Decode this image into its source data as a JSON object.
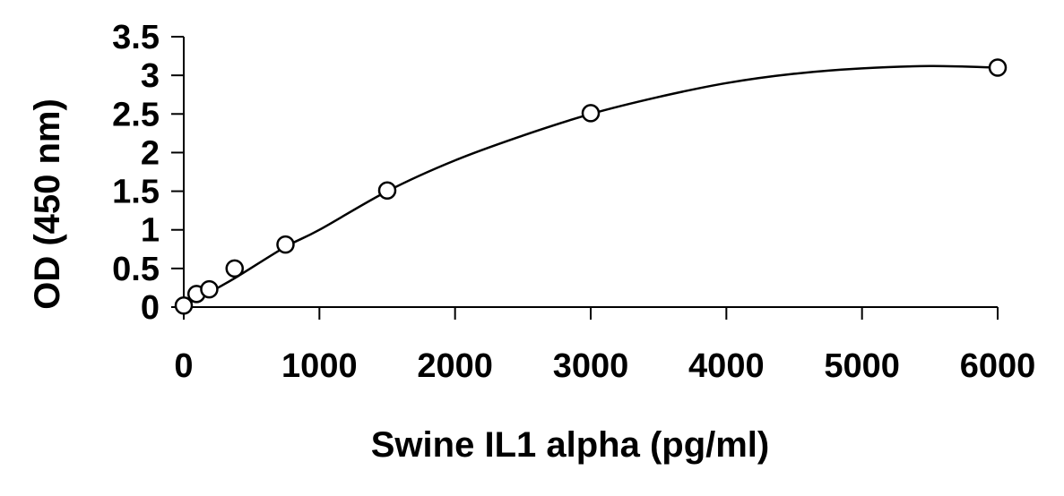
{
  "chart_data": {
    "type": "scatter",
    "xlabel": "Swine IL1 alpha (pg/ml)",
    "ylabel": "OD (450 nm)",
    "xlim": [
      0,
      6000
    ],
    "ylim": [
      0,
      3.5
    ],
    "x_ticks": [
      0,
      1000,
      2000,
      3000,
      4000,
      5000,
      6000
    ],
    "y_ticks": [
      0,
      0.5,
      1,
      1.5,
      2,
      2.5,
      3,
      3.5
    ],
    "x_tick_labels": [
      "0",
      "1000",
      "2000",
      "3000",
      "4000",
      "5000",
      "6000"
    ],
    "y_tick_labels": [
      "0",
      "0.5",
      "1",
      "1.5",
      "2",
      "2.5",
      "3",
      "3.5"
    ],
    "grid": false,
    "legend": "none",
    "series": [
      {
        "marker": "open-circle",
        "color": "#000000",
        "x": [
          0,
          94,
          188,
          375,
          750,
          1500,
          3000,
          6000
        ],
        "y": [
          0.02,
          0.17,
          0.23,
          0.5,
          0.81,
          1.51,
          2.51,
          3.1
        ]
      }
    ],
    "fit_curve": {
      "type": "polynomial",
      "color": "#000000",
      "x": [
        0,
        200,
        400,
        750,
        1000,
        1500,
        2000,
        2500,
        3000,
        3500,
        4000,
        4500,
        5000,
        5500,
        6000
      ],
      "y": [
        0.02,
        0.2,
        0.4,
        0.78,
        1.0,
        1.5,
        1.9,
        2.22,
        2.5,
        2.72,
        2.9,
        3.02,
        3.09,
        3.12,
        3.1
      ]
    }
  }
}
